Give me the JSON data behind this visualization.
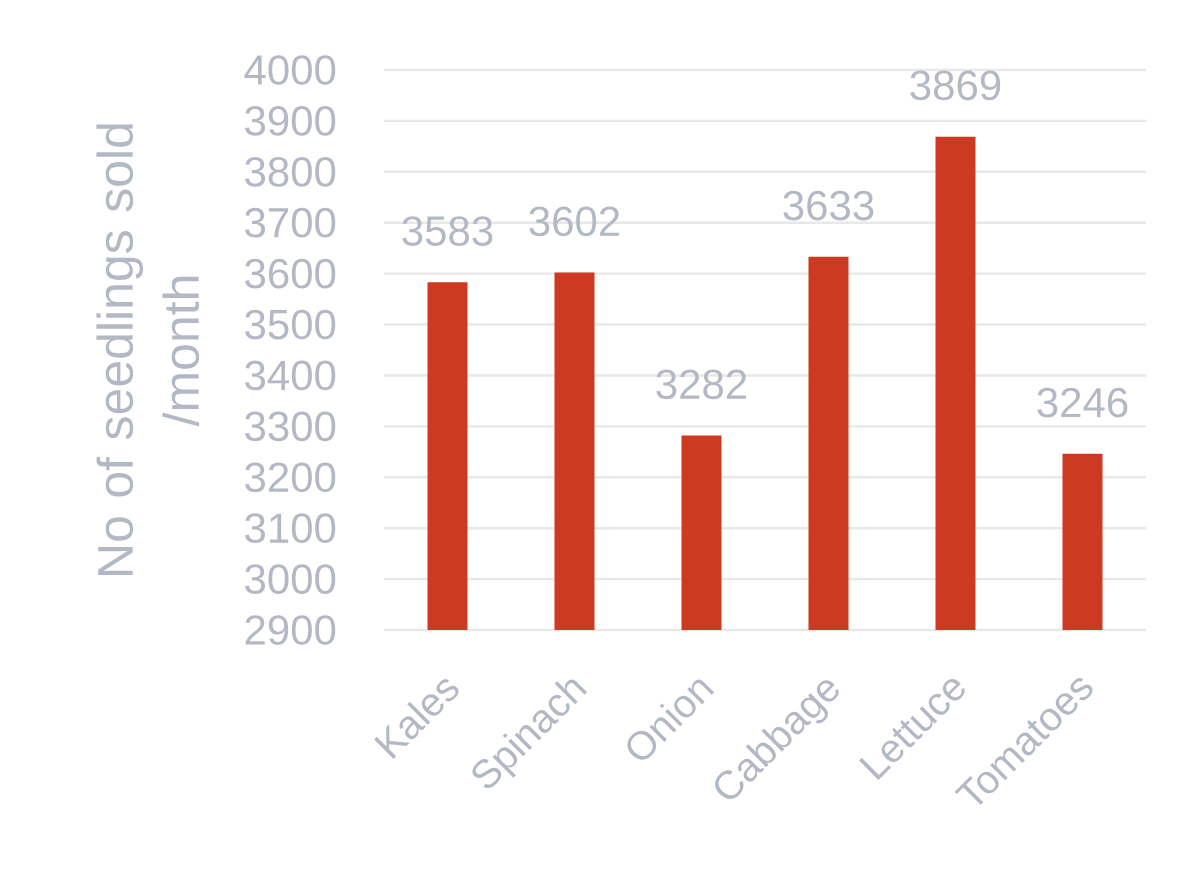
{
  "chart_data": {
    "type": "bar",
    "ylabel": "No of seedlings sold /month",
    "categories": [
      "Kales",
      "Spinach",
      "Onion",
      "Cabbage",
      "Lettuce",
      "Tomatoes"
    ],
    "values": [
      3583,
      3602,
      3282,
      3633,
      3869,
      3246
    ],
    "color": "#cc3a21",
    "ylim": [
      2900,
      4000
    ],
    "yticks": [
      2900,
      3000,
      3100,
      3200,
      3300,
      3400,
      3500,
      3600,
      3700,
      3800,
      3900,
      4000
    ],
    "grid": "y",
    "data_labels": true
  }
}
